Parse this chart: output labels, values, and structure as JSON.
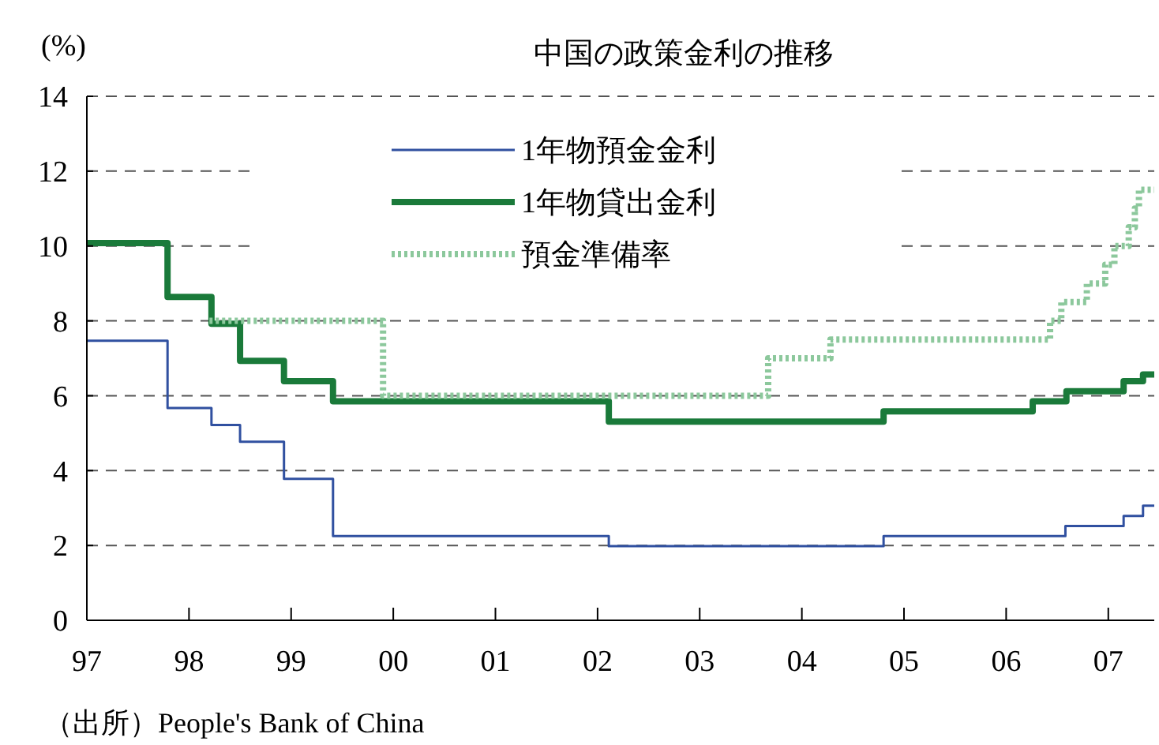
{
  "chart_data": {
    "type": "step",
    "title": "中国の政策金利の推移",
    "ylabel": "(%)",
    "annotations": [
      "（出所）People's Bank of China"
    ],
    "xlim": [
      1997,
      2007.45
    ],
    "xticks": [
      {
        "value": 1997,
        "label": "97"
      },
      {
        "value": 1998,
        "label": "98"
      },
      {
        "value": 1999,
        "label": "99"
      },
      {
        "value": 2000,
        "label": "00"
      },
      {
        "value": 2001,
        "label": "01"
      },
      {
        "value": 2002,
        "label": "02"
      },
      {
        "value": 2003,
        "label": "03"
      },
      {
        "value": 2004,
        "label": "04"
      },
      {
        "value": 2005,
        "label": "05"
      },
      {
        "value": 2006,
        "label": "06"
      },
      {
        "value": 2007,
        "label": "07"
      }
    ],
    "ylim": [
      0,
      14
    ],
    "yticks": [
      0,
      2,
      4,
      6,
      8,
      10,
      12,
      14
    ],
    "grid": "y",
    "legend": "top",
    "series": [
      {
        "name": "1年物預金金利",
        "color": "#3050a0",
        "line_style": "solid",
        "x": [
          1997,
          1997.79,
          1998.22,
          1998.5,
          1998.93,
          1999.41,
          2002.11,
          2004.8,
          2006.58,
          2007.15,
          2007.34,
          2007.45
        ],
        "values": [
          7.47,
          5.67,
          5.22,
          4.77,
          3.78,
          2.25,
          1.98,
          2.25,
          2.52,
          2.79,
          3.06,
          3.06
        ]
      },
      {
        "name": "1年物貸出金利",
        "color": "#1a7a3a",
        "line_style": "solid",
        "x": [
          1997,
          1997.79,
          1998.22,
          1998.5,
          1998.93,
          1999.41,
          2002.11,
          2004.8,
          2006.26,
          2006.59,
          2007.15,
          2007.34,
          2007.45
        ],
        "values": [
          10.08,
          8.64,
          7.92,
          6.93,
          6.39,
          5.85,
          5.31,
          5.58,
          5.85,
          6.12,
          6.39,
          6.57,
          6.57
        ]
      },
      {
        "name": "預金準備率",
        "color": "#8cc89c",
        "line_style": "dotted",
        "x": [
          1998.2,
          1999.9,
          2003.67,
          2004.28,
          2006.43,
          2006.54,
          2006.79,
          2006.97,
          2007.06,
          2007.2,
          2007.26,
          2007.3,
          2007.45
        ],
        "values": [
          8,
          6,
          7,
          7.5,
          8,
          8.5,
          9,
          9.5,
          10,
          10.5,
          11,
          11.5,
          11.5
        ]
      }
    ]
  }
}
